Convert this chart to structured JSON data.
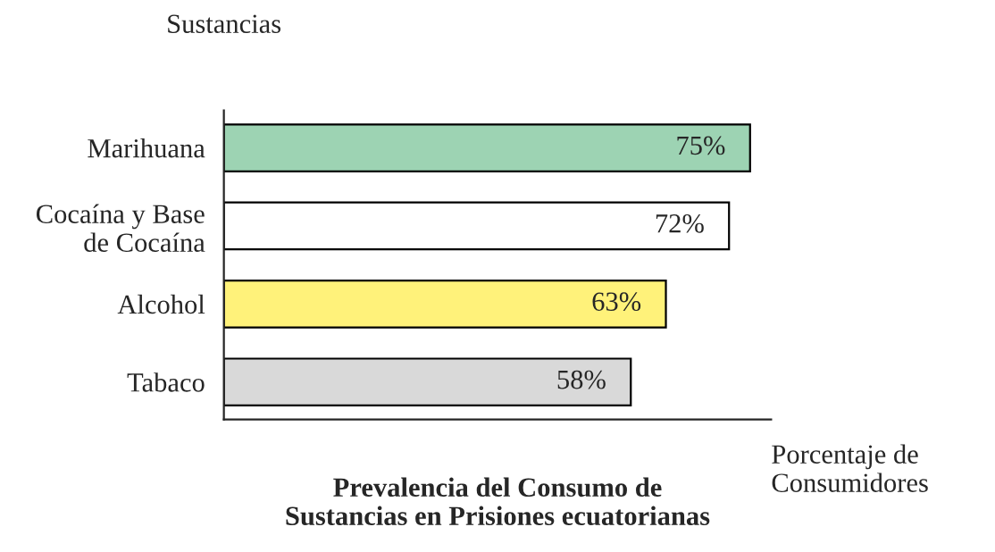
{
  "chart_data": {
    "type": "bar",
    "orientation": "horizontal",
    "title": "Prevalencia del Consumo de\nSustancias en Prisiones ecuatorianas",
    "xlabel": "Porcentaje de\nConsumidores",
    "ylabel": "Sustancias",
    "categories": [
      "Marihuana",
      "Cocaína y Base\nde Cocaína",
      "Alcohol",
      "Tabaco"
    ],
    "values": [
      75,
      72,
      63,
      58
    ],
    "colors": [
      "#9dd3b3",
      "#ffffff",
      "#fff27a",
      "#d9d9d9"
    ],
    "value_labels": [
      "75%",
      "72%",
      "63%",
      "58%"
    ],
    "xlim": [
      0,
      78
    ],
    "tick_labels": "y",
    "grid": false
  }
}
